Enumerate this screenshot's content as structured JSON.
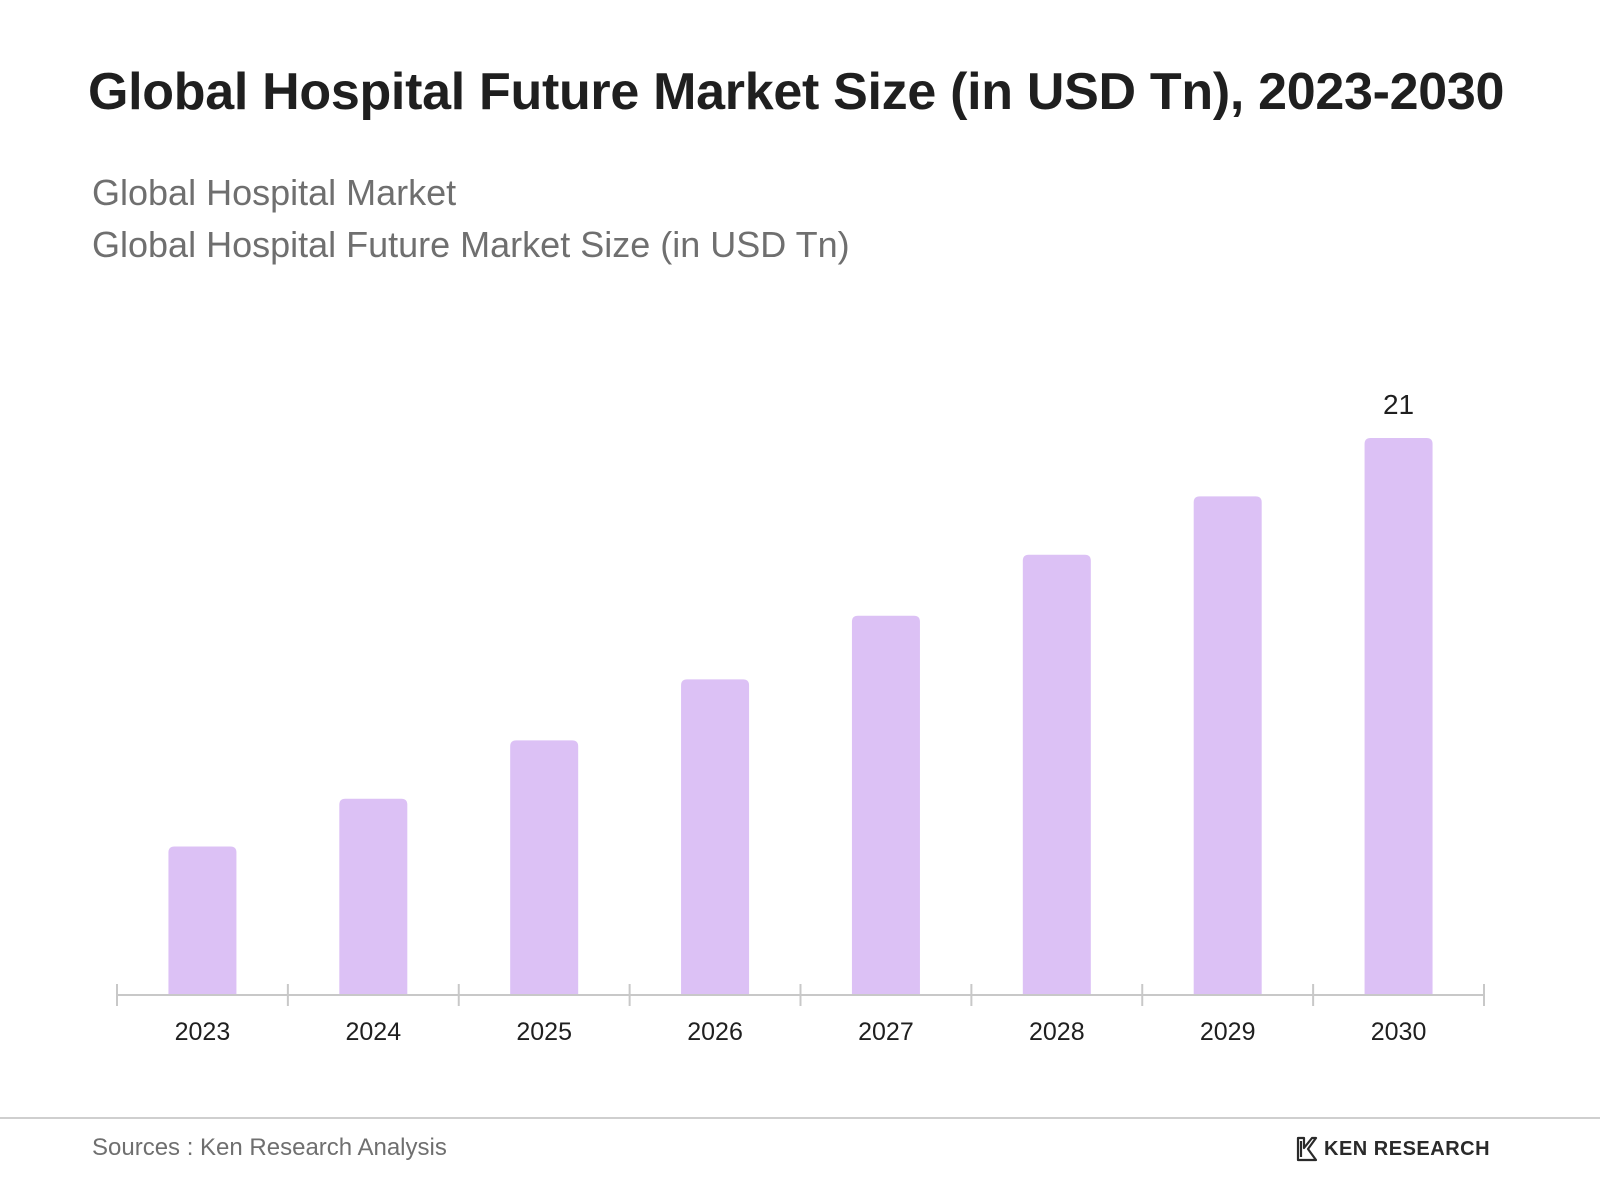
{
  "page": {
    "title": "Global Hospital Future Market Size (in USD Tn), 2023-2030",
    "subtitle_line1": "Global Hospital Market",
    "subtitle_line2": "Global Hospital Future Market Size (in USD Tn)",
    "source": "Sources : Ken Research Analysis",
    "brand": "KEN RESEARCH",
    "brand_logo_icon": "ken-research-logo-icon"
  },
  "colors": {
    "bar": "#dcc1f5",
    "axis": "#c8c8c8",
    "text": "#1f1f1f",
    "muted": "#6f6f6f"
  },
  "chart_data": {
    "type": "bar",
    "title": "Global Hospital Future Market Size (in USD Tn), 2023-2030",
    "xlabel": "",
    "ylabel": "",
    "categories": [
      "2023",
      "2024",
      "2025",
      "2026",
      "2027",
      "2028",
      "2029",
      "2030"
    ],
    "series": [
      {
        "name": "Global Hospital Future Market Size (in USD Tn)",
        "values": [
          5.6,
          7.4,
          9.6,
          11.9,
          14.3,
          16.6,
          18.8,
          21
        ]
      }
    ],
    "data_labels": [
      null,
      null,
      null,
      null,
      null,
      null,
      null,
      "21"
    ],
    "ylim": [
      0,
      21
    ],
    "grid": false,
    "legend": "none"
  }
}
